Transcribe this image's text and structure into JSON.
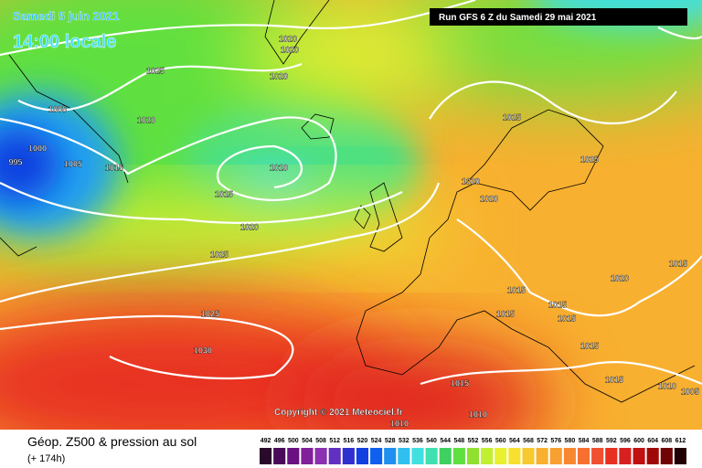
{
  "header": {
    "date": "Samedi 5 juin 2021",
    "time": "14:00 locale",
    "run": "Run GFS 6 Z du Samedi 29 mai 2021"
  },
  "isobar_labels": [
    "1020",
    "1020",
    "1025",
    "1020",
    "1005",
    "1020",
    "1000",
    "995",
    "1005",
    "1015",
    "1010",
    "1015",
    "1020",
    "1025",
    "1025",
    "1030",
    "1025",
    "1025",
    "1020",
    "1020",
    "1020",
    "1015",
    "1015",
    "1015",
    "1015",
    "1015",
    "1015",
    "1015",
    "1015",
    "1010",
    "1005",
    "1010",
    "1010"
  ],
  "copyright": "Copyright © 2021 Meteociel.fr",
  "legend": {
    "title": "Géop. Z500 & pression au sol",
    "lead": "(+ 174h)",
    "values": [
      492,
      496,
      500,
      504,
      508,
      512,
      516,
      520,
      524,
      528,
      532,
      536,
      540,
      544,
      548,
      552,
      556,
      560,
      564,
      568,
      572,
      576,
      580,
      584,
      588,
      592,
      596,
      600,
      604,
      608,
      612
    ],
    "colors": [
      "#2a0a2a",
      "#4a0a5a",
      "#6a1080",
      "#80209a",
      "#8a30b0",
      "#6030c0",
      "#3030d0",
      "#1040e0",
      "#1060f0",
      "#2090f0",
      "#30c0f0",
      "#40e0e0",
      "#40e0b0",
      "#40d060",
      "#60e040",
      "#90e030",
      "#c0f030",
      "#e8f030",
      "#f8e030",
      "#f8c830",
      "#f8b030",
      "#f8a030",
      "#f88830",
      "#f87030",
      "#f05030",
      "#e83020",
      "#d82020",
      "#c01010",
      "#a00808",
      "#700404",
      "#200000"
    ]
  }
}
